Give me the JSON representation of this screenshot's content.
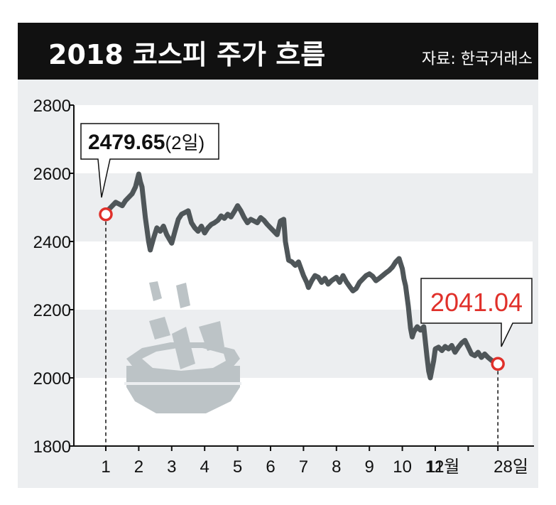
{
  "header": {
    "title": "2018 코스피 주가 흐름",
    "source": "자료: 한국거래소"
  },
  "colors": {
    "header_bg": "#111111",
    "plot_bg": "#eceef0",
    "line": "#4f5659",
    "marker": "#e0302a",
    "highlight_text": "#e0302a",
    "illustration": "#bcc3c6"
  },
  "illustration": {
    "icon": "rice-cake-steamer-icon"
  },
  "chart_data": {
    "type": "line",
    "title": "2018 코스피 주가 흐름",
    "ylim": [
      1800,
      2800
    ],
    "yticks": [
      "2800",
      "2600",
      "2400",
      "2200",
      "2000",
      "1800"
    ],
    "xticks": [
      "1",
      "2",
      "3",
      "4",
      "5",
      "6",
      "7",
      "8",
      "9",
      "10",
      "11",
      "12월",
      "28일"
    ],
    "grid": "horizontal bands",
    "series": [
      {
        "values": [
          [
            1.0,
            2479.65
          ],
          [
            1.1,
            2495
          ],
          [
            1.2,
            2505
          ],
          [
            1.3,
            2515
          ],
          [
            1.4,
            2510
          ],
          [
            1.5,
            2505
          ],
          [
            1.6,
            2520
          ],
          [
            1.7,
            2530
          ],
          [
            1.8,
            2540
          ],
          [
            1.9,
            2560
          ],
          [
            2.0,
            2598
          ],
          [
            2.05,
            2575
          ],
          [
            2.1,
            2560
          ],
          [
            2.2,
            2470
          ],
          [
            2.3,
            2400
          ],
          [
            2.35,
            2375
          ],
          [
            2.45,
            2410
          ],
          [
            2.55,
            2440
          ],
          [
            2.65,
            2430
          ],
          [
            2.75,
            2445
          ],
          [
            2.85,
            2420
          ],
          [
            3.0,
            2395
          ],
          [
            3.1,
            2430
          ],
          [
            3.2,
            2465
          ],
          [
            3.3,
            2480
          ],
          [
            3.4,
            2485
          ],
          [
            3.5,
            2490
          ],
          [
            3.6,
            2455
          ],
          [
            3.7,
            2440
          ],
          [
            3.8,
            2430
          ],
          [
            3.9,
            2445
          ],
          [
            4.0,
            2425
          ],
          [
            4.1,
            2440
          ],
          [
            4.2,
            2450
          ],
          [
            4.3,
            2455
          ],
          [
            4.4,
            2462
          ],
          [
            4.5,
            2475
          ],
          [
            4.6,
            2468
          ],
          [
            4.7,
            2480
          ],
          [
            4.8,
            2472
          ],
          [
            4.9,
            2488
          ],
          [
            5.0,
            2505
          ],
          [
            5.1,
            2490
          ],
          [
            5.2,
            2470
          ],
          [
            5.3,
            2455
          ],
          [
            5.4,
            2465
          ],
          [
            5.5,
            2460
          ],
          [
            5.6,
            2455
          ],
          [
            5.7,
            2470
          ],
          [
            5.8,
            2462
          ],
          [
            5.9,
            2450
          ],
          [
            6.0,
            2440
          ],
          [
            6.1,
            2430
          ],
          [
            6.2,
            2420
          ],
          [
            6.3,
            2460
          ],
          [
            6.4,
            2465
          ],
          [
            6.45,
            2400
          ],
          [
            6.55,
            2345
          ],
          [
            6.65,
            2340
          ],
          [
            6.75,
            2330
          ],
          [
            6.85,
            2340
          ],
          [
            7.0,
            2300
          ],
          [
            7.1,
            2280
          ],
          [
            7.15,
            2265
          ],
          [
            7.25,
            2285
          ],
          [
            7.35,
            2300
          ],
          [
            7.45,
            2295
          ],
          [
            7.55,
            2280
          ],
          [
            7.65,
            2292
          ],
          [
            7.75,
            2275
          ],
          [
            7.85,
            2285
          ],
          [
            8.0,
            2295
          ],
          [
            8.1,
            2280
          ],
          [
            8.2,
            2300
          ],
          [
            8.3,
            2282
          ],
          [
            8.4,
            2268
          ],
          [
            8.5,
            2255
          ],
          [
            8.6,
            2262
          ],
          [
            8.7,
            2280
          ],
          [
            8.8,
            2290
          ],
          [
            8.9,
            2300
          ],
          [
            9.0,
            2305
          ],
          [
            9.1,
            2298
          ],
          [
            9.2,
            2285
          ],
          [
            9.3,
            2292
          ],
          [
            9.4,
            2300
          ],
          [
            9.5,
            2308
          ],
          [
            9.6,
            2315
          ],
          [
            9.7,
            2325
          ],
          [
            9.8,
            2340
          ],
          [
            9.9,
            2350
          ],
          [
            10.0,
            2320
          ],
          [
            10.05,
            2290
          ],
          [
            10.1,
            2270
          ],
          [
            10.18,
            2210
          ],
          [
            10.25,
            2145
          ],
          [
            10.3,
            2120
          ],
          [
            10.35,
            2135
          ],
          [
            10.45,
            2150
          ],
          [
            10.55,
            2140
          ],
          [
            10.65,
            2150
          ],
          [
            10.75,
            2060
          ],
          [
            10.8,
            2020
          ],
          [
            10.85,
            2000
          ],
          [
            10.95,
            2050
          ],
          [
            11.0,
            2085
          ],
          [
            11.1,
            2090
          ],
          [
            11.2,
            2080
          ],
          [
            11.3,
            2092
          ],
          [
            11.4,
            2085
          ],
          [
            11.5,
            2095
          ],
          [
            11.6,
            2075
          ],
          [
            11.7,
            2090
          ],
          [
            11.8,
            2102
          ],
          [
            11.9,
            2110
          ],
          [
            12.0,
            2090
          ],
          [
            12.1,
            2070
          ],
          [
            12.2,
            2065
          ],
          [
            12.3,
            2075
          ],
          [
            12.4,
            2060
          ],
          [
            12.5,
            2070
          ],
          [
            12.6,
            2060
          ],
          [
            12.7,
            2052
          ],
          [
            12.8,
            2045
          ],
          [
            12.9,
            2041.04
          ]
        ]
      }
    ],
    "annotations": {
      "start": {
        "x": 1.0,
        "y": 2479.65,
        "value": "2479.65",
        "note": "(2일)"
      },
      "end": {
        "x": 12.9,
        "y": 2041.04,
        "value": "2041.04"
      }
    }
  }
}
